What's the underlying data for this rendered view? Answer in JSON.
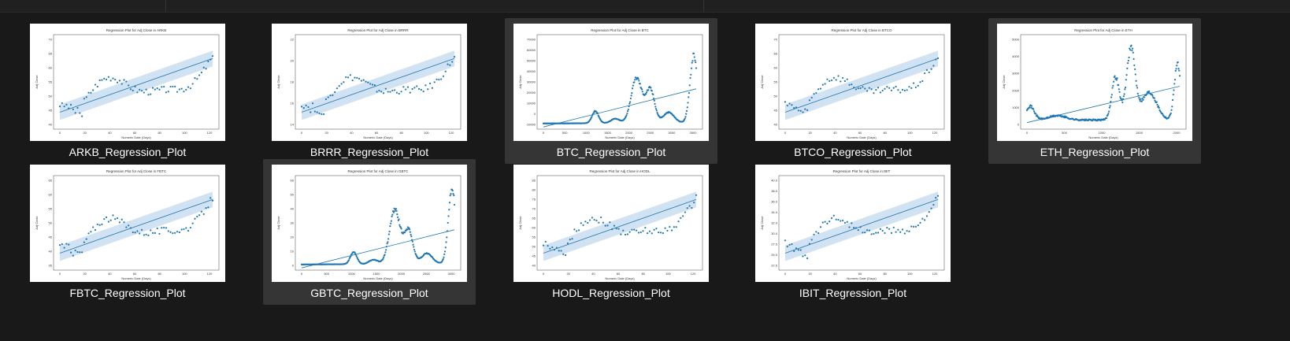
{
  "files": [
    {
      "name": "ARKB_Regression_Plot",
      "title": "Regression Plot for Adj Close in ARKB",
      "ylabel": "Adj Close",
      "xlabel": "Numeric Date (Days)",
      "kind": "etf",
      "selected": false,
      "yticks": [
        "70",
        "65",
        "60",
        "55",
        "50",
        "45",
        "40"
      ],
      "xticks": [
        "0",
        "20",
        "40",
        "60",
        "80",
        "100",
        "120"
      ]
    },
    {
      "name": "BRRR_Regression_Plot",
      "title": "Regression Plot for Adj Close in BRRR",
      "ylabel": "Adj Close",
      "xlabel": "Numeric Date (Days)",
      "kind": "etf",
      "selected": false,
      "yticks": [
        "22",
        "20",
        "18",
        "16",
        "14"
      ],
      "xticks": [
        "0",
        "20",
        "40",
        "60",
        "80",
        "100",
        "120"
      ]
    },
    {
      "name": "BTC_Regression_Plot",
      "title": "Regression Plot for Adj Close in BTC",
      "ylabel": "Adj Close",
      "xlabel": "Numeric Date (Days)",
      "kind": "btc",
      "selected": true,
      "yticks": [
        "70000",
        "60000",
        "50000",
        "40000",
        "30000",
        "20000",
        "10000",
        "0",
        "-10000"
      ],
      "xticks": [
        "0",
        "500",
        "1000",
        "1500",
        "2000",
        "2500",
        "3000",
        "3500"
      ]
    },
    {
      "name": "BTCO_Regression_Plot",
      "title": "Regression Plot for Adj Close in BTCO",
      "ylabel": "Adj Close",
      "xlabel": "Numeric Date (Days)",
      "kind": "etf",
      "selected": false,
      "yticks": [
        "70",
        "65",
        "60",
        "55",
        "50",
        "45",
        "40"
      ],
      "xticks": [
        "0",
        "20",
        "40",
        "60",
        "80",
        "100",
        "120"
      ]
    },
    {
      "name": "ETH_Regression_Plot",
      "title": "Regression Plot for Adj Close in ETH",
      "ylabel": "Adj Close",
      "xlabel": "Numeric Date (Days)",
      "kind": "eth",
      "selected": true,
      "yticks": [
        "5000",
        "4000",
        "3000",
        "2000",
        "1000",
        "0"
      ],
      "xticks": [
        "0",
        "500",
        "1000",
        "1500",
        "2000"
      ]
    },
    {
      "name": "FBTC_Regression_Plot",
      "title": "Regression Plot for Adj Close in FBTC",
      "ylabel": "Adj Close",
      "xlabel": "Numeric Date (Days)",
      "kind": "etf",
      "selected": false,
      "yticks": [
        "65",
        "60",
        "55",
        "50",
        "45",
        "40",
        "35"
      ],
      "xticks": [
        "0",
        "20",
        "40",
        "60",
        "80",
        "100",
        "120"
      ]
    },
    {
      "name": "GBTC_Regression_Plot",
      "title": "Regression Plot for Adj Close in GBTC",
      "ylabel": "Adj Close",
      "xlabel": "Numeric Date (Days)",
      "kind": "btc",
      "selected": true,
      "yticks": [
        "60",
        "50",
        "40",
        "30",
        "20",
        "10",
        "0"
      ],
      "xticks": [
        "0",
        "500",
        "1000",
        "1500",
        "2000",
        "2500",
        "3000"
      ]
    },
    {
      "name": "HODL_Regression_Plot",
      "title": "Regression Plot for Adj Close in HODL",
      "ylabel": "Adj Close",
      "xlabel": "Numeric Date (Days)",
      "kind": "etf",
      "selected": false,
      "yticks": [
        "85",
        "80",
        "75",
        "70",
        "65",
        "60",
        "55",
        "50",
        "45",
        "40"
      ],
      "xticks": [
        "0",
        "20",
        "40",
        "60",
        "80",
        "100",
        "120"
      ]
    },
    {
      "name": "IBIT_Regression_Plot",
      "title": "Regression Plot for Adj Close in IBIT",
      "ylabel": "Adj Close",
      "xlabel": "Numeric Date (Days)",
      "kind": "etf",
      "selected": false,
      "yticks": [
        "40.0",
        "38.0",
        "36.0",
        "34.0",
        "32.0",
        "30.0",
        "27.5",
        "25.0",
        "22.5"
      ],
      "xticks": [
        "0",
        "20",
        "40",
        "60",
        "80",
        "100",
        "120"
      ]
    }
  ],
  "colors": {
    "series": "#1f77b4",
    "band": "#c6dbef"
  }
}
